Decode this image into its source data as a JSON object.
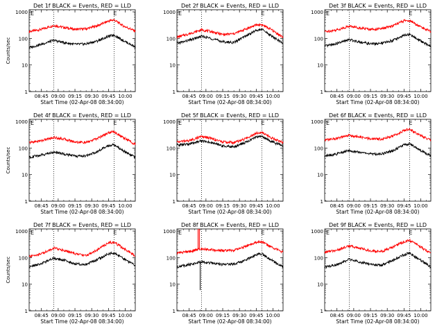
{
  "chart_data": [
    {
      "type": "line",
      "title": "Det 1f BLACK = Events, RED = LLD",
      "ylabel": "Counts/sec",
      "xlabel": "Start Time (02-Apr-08 08:34:00)",
      "x_ticks": [
        "08:45",
        "09:00",
        "09:15",
        "09:30",
        "09:45",
        "10:00"
      ],
      "y_ticks": [
        "1",
        "10",
        "100",
        "1000"
      ],
      "y_scale": "log",
      "ylim": [
        1,
        1200
      ],
      "xlim": [
        "08:34",
        "10:09"
      ],
      "markers": [
        "08:56",
        "09:50"
      ],
      "marker_letters": [
        "E",
        "E"
      ],
      "time_points": [
        "08:34",
        "08:45",
        "08:56",
        "09:05",
        "09:15",
        "09:25",
        "09:35",
        "09:45",
        "09:50",
        "09:58",
        "10:09"
      ],
      "series": [
        {
          "color": "#ff0000",
          "values": [
            180,
            220,
            310,
            260,
            220,
            230,
            300,
            450,
            500,
            300,
            190
          ]
        },
        {
          "color": "#000000",
          "values": [
            45,
            60,
            85,
            70,
            60,
            62,
            80,
            120,
            135,
            85,
            48
          ]
        }
      ]
    },
    {
      "type": "line",
      "title": "Det 2f BLACK = Events, RED = LLD",
      "ylabel": "",
      "xlabel": "Start Time (02-Apr-08 08:34:00)",
      "x_ticks": [
        "08:45",
        "09:00",
        "09:15",
        "09:30",
        "09:45",
        "10:00"
      ],
      "y_ticks": [
        "1",
        "10",
        "100",
        "1000"
      ],
      "y_scale": "log",
      "ylim": [
        1,
        1200
      ],
      "xlim": [
        "08:34",
        "10:09"
      ],
      "markers": [
        "08:56",
        "09:50"
      ],
      "marker_letters": [
        "E",
        "E"
      ],
      "time_points": [
        "08:34",
        "08:45",
        "08:56",
        "09:05",
        "09:15",
        "09:25",
        "09:35",
        "09:45",
        "09:50",
        "09:58",
        "10:09"
      ],
      "series": [
        {
          "color": "#ff0000",
          "values": [
            110,
            150,
            210,
            180,
            140,
            150,
            220,
            320,
            330,
            220,
            110
          ]
        },
        {
          "color": "#000000",
          "values": [
            65,
            85,
            120,
            100,
            75,
            70,
            120,
            200,
            220,
            130,
            65
          ]
        }
      ]
    },
    {
      "type": "line",
      "title": "Det 3f BLACK = Events, RED = LLD",
      "ylabel": "",
      "xlabel": "Start Time (02-Apr-08 08:34:00)",
      "x_ticks": [
        "08:45",
        "09:00",
        "09:15",
        "09:30",
        "09:45",
        "10:00"
      ],
      "y_ticks": [
        "1",
        "10",
        "100",
        "1000"
      ],
      "y_scale": "log",
      "ylim": [
        1,
        1200
      ],
      "xlim": [
        "08:34",
        "10:09"
      ],
      "markers": [
        "08:56",
        "09:50"
      ],
      "marker_letters": [
        "E",
        "E"
      ],
      "time_points": [
        "08:34",
        "08:45",
        "08:56",
        "09:05",
        "09:15",
        "09:25",
        "09:35",
        "09:45",
        "09:50",
        "09:58",
        "10:09"
      ],
      "series": [
        {
          "color": "#ff0000",
          "values": [
            180,
            210,
            290,
            250,
            220,
            230,
            300,
            460,
            470,
            300,
            180
          ]
        },
        {
          "color": "#000000",
          "values": [
            50,
            65,
            90,
            75,
            62,
            65,
            85,
            130,
            140,
            90,
            50
          ]
        }
      ]
    },
    {
      "type": "line",
      "title": "Det 4f BLACK = Events, RED = LLD",
      "ylabel": "Counts/sec",
      "xlabel": "Start Time (02-Apr-08 08:34:00)",
      "x_ticks": [
        "08:45",
        "09:00",
        "09:15",
        "09:30",
        "09:45",
        "10:00"
      ],
      "y_ticks": [
        "1",
        "10",
        "100",
        "1000"
      ],
      "y_scale": "log",
      "ylim": [
        1,
        1200
      ],
      "xlim": [
        "08:34",
        "10:09"
      ],
      "markers": [
        "08:56",
        "09:50"
      ],
      "marker_letters": [
        "E",
        "E"
      ],
      "time_points": [
        "08:34",
        "08:45",
        "08:56",
        "09:05",
        "09:15",
        "09:25",
        "09:35",
        "09:45",
        "09:50",
        "09:58",
        "10:09"
      ],
      "series": [
        {
          "color": "#ff0000",
          "values": [
            160,
            190,
            250,
            220,
            170,
            160,
            230,
            380,
            410,
            250,
            140
          ]
        },
        {
          "color": "#000000",
          "values": [
            45,
            55,
            70,
            60,
            50,
            50,
            75,
            120,
            135,
            80,
            45
          ]
        }
      ]
    },
    {
      "type": "line",
      "title": "Det 5f BLACK = Events, RED = LLD",
      "ylabel": "",
      "xlabel": "Start Time (02-Apr-08 08:34:00)",
      "x_ticks": [
        "08:45",
        "09:00",
        "09:15",
        "09:30",
        "09:45",
        "10:00"
      ],
      "y_ticks": [
        "1",
        "10",
        "100",
        "1000"
      ],
      "y_scale": "log",
      "ylim": [
        1,
        1200
      ],
      "xlim": [
        "08:34",
        "10:09"
      ],
      "markers": [
        "08:56",
        "09:50"
      ],
      "marker_letters": [
        "E",
        "E"
      ],
      "time_points": [
        "08:34",
        "08:45",
        "08:56",
        "09:05",
        "09:15",
        "09:25",
        "09:35",
        "09:45",
        "09:50",
        "09:58",
        "10:09"
      ],
      "series": [
        {
          "color": "#ff0000",
          "values": [
            170,
            190,
            270,
            230,
            170,
            160,
            220,
            370,
            400,
            250,
            160
          ]
        },
        {
          "color": "#000000",
          "values": [
            130,
            140,
            190,
            160,
            120,
            110,
            160,
            260,
            280,
            180,
            120
          ]
        }
      ]
    },
    {
      "type": "line",
      "title": "Det 6f BLACK = Events, RED = LLD",
      "ylabel": "",
      "xlabel": "Start Time (02-Apr-08 08:34:00)",
      "x_ticks": [
        "08:45",
        "09:00",
        "09:15",
        "09:30",
        "09:45",
        "10:00"
      ],
      "y_ticks": [
        "1",
        "10",
        "100",
        "1000"
      ],
      "y_scale": "log",
      "ylim": [
        1,
        1200
      ],
      "xlim": [
        "08:34",
        "10:09"
      ],
      "markers": [
        "08:56",
        "09:50"
      ],
      "marker_letters": [
        "E",
        "E"
      ],
      "time_points": [
        "08:34",
        "08:45",
        "08:56",
        "09:05",
        "09:15",
        "09:25",
        "09:35",
        "09:45",
        "09:50",
        "09:58",
        "10:09"
      ],
      "series": [
        {
          "color": "#ff0000",
          "values": [
            200,
            230,
            300,
            260,
            220,
            220,
            280,
            460,
            520,
            320,
            200
          ]
        },
        {
          "color": "#000000",
          "values": [
            50,
            60,
            80,
            70,
            60,
            60,
            80,
            130,
            145,
            90,
            50
          ]
        }
      ]
    },
    {
      "type": "line",
      "title": "Det 7f BLACK = Events, RED = LLD",
      "ylabel": "Counts/sec",
      "xlabel": "Start Time (02-Apr-08 08:34:00)",
      "x_ticks": [
        "08:45",
        "09:00",
        "09:15",
        "09:30",
        "09:45",
        "10:00"
      ],
      "y_ticks": [
        "1",
        "10",
        "100",
        "1000"
      ],
      "y_scale": "log",
      "ylim": [
        1,
        1200
      ],
      "xlim": [
        "08:34",
        "10:09"
      ],
      "markers": [
        "08:56",
        "09:50"
      ],
      "marker_letters": [
        "E",
        "E"
      ],
      "time_points": [
        "08:34",
        "08:45",
        "08:56",
        "09:05",
        "09:15",
        "09:25",
        "09:35",
        "09:45",
        "09:50",
        "09:58",
        "10:09"
      ],
      "series": [
        {
          "color": "#ff0000",
          "values": [
            110,
            140,
            230,
            190,
            140,
            120,
            200,
            360,
            380,
            230,
            120
          ]
        },
        {
          "color": "#000000",
          "values": [
            45,
            60,
            95,
            80,
            60,
            55,
            85,
            140,
            150,
            95,
            50
          ]
        }
      ]
    },
    {
      "type": "line",
      "title": "Det 8f BLACK = Events, RED = LLD",
      "ylabel": "",
      "xlabel": "Start Time (02-Apr-08 08:34:00)",
      "x_ticks": [
        "08:45",
        "09:00",
        "09:15",
        "09:30",
        "09:45",
        "10:00"
      ],
      "y_ticks": [
        "1",
        "10",
        "100",
        "1000"
      ],
      "y_scale": "log",
      "ylim": [
        1,
        1200
      ],
      "xlim": [
        "08:34",
        "10:09"
      ],
      "markers": [
        "08:56",
        "09:50"
      ],
      "marker_letters": [
        "E",
        "E"
      ],
      "time_points": [
        "08:34",
        "08:45",
        "08:56",
        "09:05",
        "09:15",
        "09:25",
        "09:35",
        "09:45",
        "09:50",
        "09:58",
        "10:09"
      ],
      "series": [
        {
          "color": "#ff0000",
          "values": [
            150,
            170,
            220,
            200,
            180,
            190,
            260,
            380,
            400,
            260,
            160
          ]
        },
        {
          "color": "#000000",
          "values": [
            45,
            55,
            70,
            62,
            55,
            58,
            80,
            130,
            140,
            85,
            45
          ]
        }
      ],
      "spike": {
        "time": "08:53",
        "red_peak": 1200,
        "black_min": 6
      }
    },
    {
      "type": "line",
      "title": "Det 9f BLACK = Events, RED = LLD",
      "ylabel": "",
      "xlabel": "Start Time (02-Apr-08 08:34:00)",
      "x_ticks": [
        "08:45",
        "09:00",
        "09:15",
        "09:30",
        "09:45",
        "10:00"
      ],
      "y_ticks": [
        "1",
        "10",
        "100",
        "1000"
      ],
      "y_scale": "log",
      "ylim": [
        1,
        1200
      ],
      "xlim": [
        "08:34",
        "10:09"
      ],
      "markers": [
        "08:56",
        "09:50"
      ],
      "marker_letters": [
        "E",
        "E"
      ],
      "time_points": [
        "08:34",
        "08:45",
        "08:56",
        "09:05",
        "09:15",
        "09:25",
        "09:35",
        "09:45",
        "09:50",
        "09:58",
        "10:09"
      ],
      "series": [
        {
          "color": "#ff0000",
          "values": [
            160,
            190,
            280,
            230,
            180,
            170,
            250,
            400,
            450,
            280,
            150
          ]
        },
        {
          "color": "#000000",
          "values": [
            45,
            55,
            85,
            70,
            55,
            52,
            80,
            130,
            150,
            90,
            45
          ]
        }
      ]
    }
  ]
}
